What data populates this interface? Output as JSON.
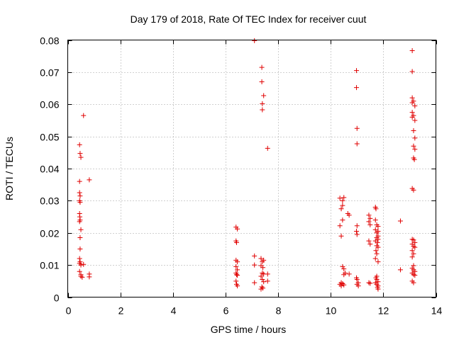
{
  "chart_data": {
    "type": "scatter",
    "title": "Day 179 of 2018, Rate Of TEC Index for receiver cuut",
    "xlabel": "GPS time / hours",
    "ylabel": "ROTI / TECUs",
    "xlim": [
      0,
      14
    ],
    "ylim": [
      0,
      0.08
    ],
    "xticks": [
      0,
      2,
      4,
      6,
      8,
      10,
      12,
      14
    ],
    "xtick_labels": [
      "0",
      "2",
      "4",
      "6",
      "8",
      "10",
      "12",
      "14"
    ],
    "yticks": [
      0,
      0.01,
      0.02,
      0.03,
      0.04,
      0.05,
      0.06,
      0.07,
      0.08
    ],
    "ytick_labels": [
      "0",
      "0.01",
      "0.02",
      "0.03",
      "0.04",
      "0.05",
      "0.06",
      "0.07",
      "0.08"
    ],
    "grid": true,
    "marker": "+",
    "color": "#e00000",
    "series": [
      {
        "name": "ROTI",
        "points": [
          [
            0.45,
            0.0474
          ],
          [
            0.47,
            0.0447
          ],
          [
            0.5,
            0.0435
          ],
          [
            0.6,
            0.0565
          ],
          [
            0.45,
            0.036
          ],
          [
            0.45,
            0.0325
          ],
          [
            0.47,
            0.0315
          ],
          [
            0.45,
            0.03
          ],
          [
            0.47,
            0.0295
          ],
          [
            0.45,
            0.026
          ],
          [
            0.46,
            0.025
          ],
          [
            0.47,
            0.024
          ],
          [
            0.45,
            0.0235
          ],
          [
            0.5,
            0.021
          ],
          [
            0.47,
            0.0185
          ],
          [
            0.47,
            0.015
          ],
          [
            0.45,
            0.012
          ],
          [
            0.47,
            0.011
          ],
          [
            0.45,
            0.0105
          ],
          [
            0.5,
            0.01
          ],
          [
            0.6,
            0.0102
          ],
          [
            0.45,
            0.008
          ],
          [
            0.5,
            0.007
          ],
          [
            0.5,
            0.0065
          ],
          [
            0.55,
            0.0062
          ],
          [
            0.82,
            0.0365
          ],
          [
            0.82,
            0.0072
          ],
          [
            0.82,
            0.0063
          ],
          [
            6.4,
            0.0218
          ],
          [
            6.45,
            0.0212
          ],
          [
            6.4,
            0.0175
          ],
          [
            6.42,
            0.017
          ],
          [
            6.4,
            0.0115
          ],
          [
            6.45,
            0.011
          ],
          [
            6.4,
            0.0095
          ],
          [
            6.45,
            0.0085
          ],
          [
            6.4,
            0.0075
          ],
          [
            6.42,
            0.007
          ],
          [
            6.45,
            0.0068
          ],
          [
            6.4,
            0.005
          ],
          [
            6.42,
            0.004
          ],
          [
            6.45,
            0.0035
          ],
          [
            7.1,
            0.0798
          ],
          [
            7.1,
            0.0128
          ],
          [
            7.1,
            0.01
          ],
          [
            7.1,
            0.0045
          ],
          [
            7.38,
            0.0715
          ],
          [
            7.38,
            0.067
          ],
          [
            7.45,
            0.0627
          ],
          [
            7.4,
            0.0602
          ],
          [
            7.4,
            0.0583
          ],
          [
            7.6,
            0.0463
          ],
          [
            7.35,
            0.012
          ],
          [
            7.45,
            0.0115
          ],
          [
            7.4,
            0.011
          ],
          [
            7.35,
            0.0098
          ],
          [
            7.42,
            0.0092
          ],
          [
            7.4,
            0.0075
          ],
          [
            7.45,
            0.0072
          ],
          [
            7.35,
            0.0065
          ],
          [
            7.4,
            0.0055
          ],
          [
            7.45,
            0.0048
          ],
          [
            7.38,
            0.0032
          ],
          [
            7.42,
            0.0028
          ],
          [
            7.35,
            0.0025
          ],
          [
            7.6,
            0.0072
          ],
          [
            7.6,
            0.005
          ],
          [
            10.35,
            0.0308
          ],
          [
            10.5,
            0.031
          ],
          [
            10.45,
            0.03
          ],
          [
            10.45,
            0.0285
          ],
          [
            10.4,
            0.0275
          ],
          [
            10.65,
            0.026
          ],
          [
            10.7,
            0.0255
          ],
          [
            10.45,
            0.024
          ],
          [
            10.35,
            0.0222
          ],
          [
            10.4,
            0.019
          ],
          [
            10.45,
            0.0095
          ],
          [
            10.5,
            0.0088
          ],
          [
            10.55,
            0.0075
          ],
          [
            10.5,
            0.007
          ],
          [
            10.7,
            0.0072
          ],
          [
            10.4,
            0.0045
          ],
          [
            10.45,
            0.0042
          ],
          [
            10.35,
            0.004
          ],
          [
            10.5,
            0.0038
          ],
          [
            10.4,
            0.0035
          ],
          [
            10.98,
            0.0705
          ],
          [
            10.98,
            0.0652
          ],
          [
            11.0,
            0.0525
          ],
          [
            11.0,
            0.0477
          ],
          [
            11.0,
            0.0222
          ],
          [
            10.98,
            0.0205
          ],
          [
            11.0,
            0.0195
          ],
          [
            10.98,
            0.006
          ],
          [
            11.0,
            0.0055
          ],
          [
            11.05,
            0.0045
          ],
          [
            11.0,
            0.004
          ],
          [
            11.05,
            0.0035
          ],
          [
            11.45,
            0.0255
          ],
          [
            11.5,
            0.0245
          ],
          [
            11.45,
            0.0235
          ],
          [
            11.5,
            0.0225
          ],
          [
            11.45,
            0.0175
          ],
          [
            11.5,
            0.0165
          ],
          [
            11.45,
            0.0045
          ],
          [
            11.5,
            0.0043
          ],
          [
            11.7,
            0.028
          ],
          [
            11.72,
            0.0275
          ],
          [
            11.7,
            0.024
          ],
          [
            11.75,
            0.0225
          ],
          [
            11.8,
            0.022
          ],
          [
            11.7,
            0.021
          ],
          [
            11.8,
            0.0205
          ],
          [
            11.75,
            0.02
          ],
          [
            11.8,
            0.019
          ],
          [
            11.75,
            0.0185
          ],
          [
            11.8,
            0.018
          ],
          [
            11.7,
            0.0175
          ],
          [
            11.78,
            0.017
          ],
          [
            11.75,
            0.016
          ],
          [
            11.8,
            0.0155
          ],
          [
            11.72,
            0.0145
          ],
          [
            11.75,
            0.0135
          ],
          [
            11.7,
            0.012
          ],
          [
            11.8,
            0.011
          ],
          [
            11.75,
            0.0065
          ],
          [
            11.72,
            0.006
          ],
          [
            11.75,
            0.0055
          ],
          [
            11.8,
            0.0048
          ],
          [
            11.7,
            0.0045
          ],
          [
            11.75,
            0.004
          ],
          [
            11.8,
            0.0035
          ],
          [
            11.78,
            0.003
          ],
          [
            11.8,
            0.0025
          ],
          [
            12.65,
            0.0237
          ],
          [
            12.65,
            0.0085
          ],
          [
            13.1,
            0.0767
          ],
          [
            13.1,
            0.0702
          ],
          [
            13.1,
            0.062
          ],
          [
            13.15,
            0.061
          ],
          [
            13.1,
            0.0605
          ],
          [
            13.2,
            0.0595
          ],
          [
            13.1,
            0.0575
          ],
          [
            13.15,
            0.0565
          ],
          [
            13.1,
            0.056
          ],
          [
            13.2,
            0.055
          ],
          [
            13.15,
            0.0518
          ],
          [
            13.2,
            0.0495
          ],
          [
            13.15,
            0.047
          ],
          [
            13.2,
            0.046
          ],
          [
            13.15,
            0.0433
          ],
          [
            13.18,
            0.0428
          ],
          [
            13.1,
            0.0338
          ],
          [
            13.15,
            0.0333
          ],
          [
            13.1,
            0.018
          ],
          [
            13.15,
            0.0178
          ],
          [
            13.2,
            0.017
          ],
          [
            13.1,
            0.0165
          ],
          [
            13.15,
            0.0158
          ],
          [
            13.2,
            0.0155
          ],
          [
            13.1,
            0.0145
          ],
          [
            13.15,
            0.0135
          ],
          [
            13.1,
            0.0125
          ],
          [
            13.15,
            0.0098
          ],
          [
            13.1,
            0.009
          ],
          [
            13.15,
            0.0085
          ],
          [
            13.2,
            0.008
          ],
          [
            13.1,
            0.0075
          ],
          [
            13.15,
            0.007
          ],
          [
            13.2,
            0.0068
          ],
          [
            13.1,
            0.005
          ],
          [
            13.15,
            0.0045
          ]
        ]
      }
    ]
  }
}
